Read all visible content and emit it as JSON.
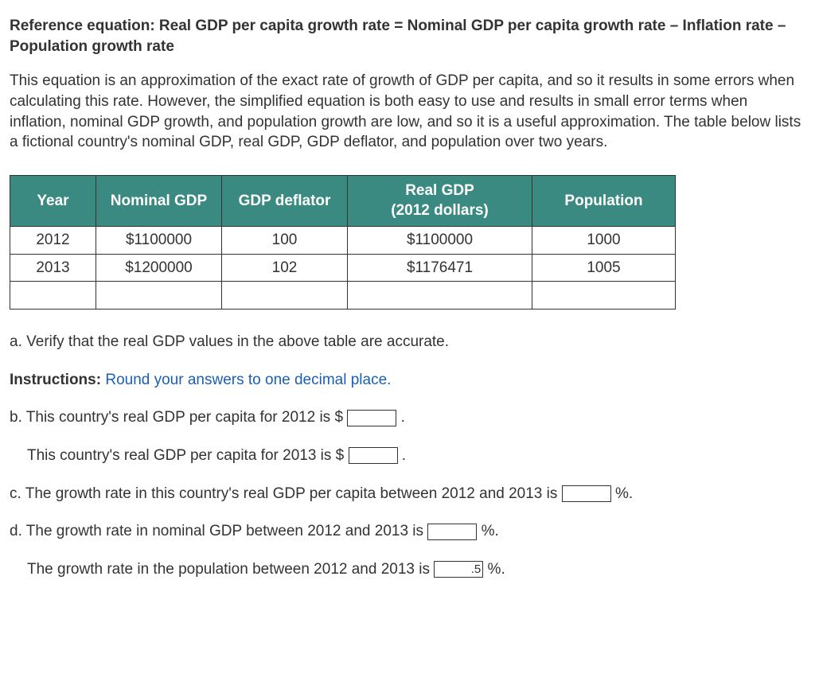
{
  "reference_equation": "Reference equation: Real GDP per capita growth rate = Nominal GDP per capita growth rate – Inflation rate – Population growth rate",
  "description": "This equation is an approximation of the exact rate of growth of GDP per capita, and so it results in some errors when calculating this rate. However, the simplified equation is both easy to use and results in small error terms when inflation, nominal GDP growth, and population growth are low, and so it is a useful approximation. The table below lists a fictional country's nominal GDP, real GDP, GDP deflator, and population over two years.",
  "table": {
    "headers": {
      "year": "Year",
      "nominal": "Nominal GDP",
      "deflator": "GDP deflator",
      "real_line1": "Real GDP",
      "real_line2": "(2012 dollars)",
      "pop": "Population"
    },
    "rows": [
      {
        "year": "2012",
        "nominal": "$1100000",
        "deflator": "100",
        "real": "$1100000",
        "pop": "1000"
      },
      {
        "year": "2013",
        "nominal": "$1200000",
        "deflator": "102",
        "real": "$1176471",
        "pop": "1005"
      }
    ],
    "header_bg": "#3a8a82",
    "header_fg": "#ffffff",
    "border_color": "#333333"
  },
  "questions": {
    "a": "a. Verify that the real GDP values in the above table are accurate.",
    "instructions_label": "Instructions:",
    "instructions_text": " Round your answers to one decimal place.",
    "b_pre": "b. This country's real GDP per capita for 2012 is $ ",
    "b_post": " .",
    "b2_pre": "This country's real GDP per capita for 2013 is $ ",
    "b2_post": " .",
    "c_pre": "c. The growth rate in this country's real GDP per capita between 2012 and 2013 is ",
    "c_post": " %.",
    "d_pre": "d. The growth rate in nominal GDP between 2012 and 2013 is ",
    "d_post": " %.",
    "d2_pre": "The growth rate in the population between 2012 and 2013 is ",
    "d2_value": ".5",
    "d2_post": " %."
  },
  "colors": {
    "instructions_blue": "#1a5fb4",
    "body_text": "#333333"
  }
}
